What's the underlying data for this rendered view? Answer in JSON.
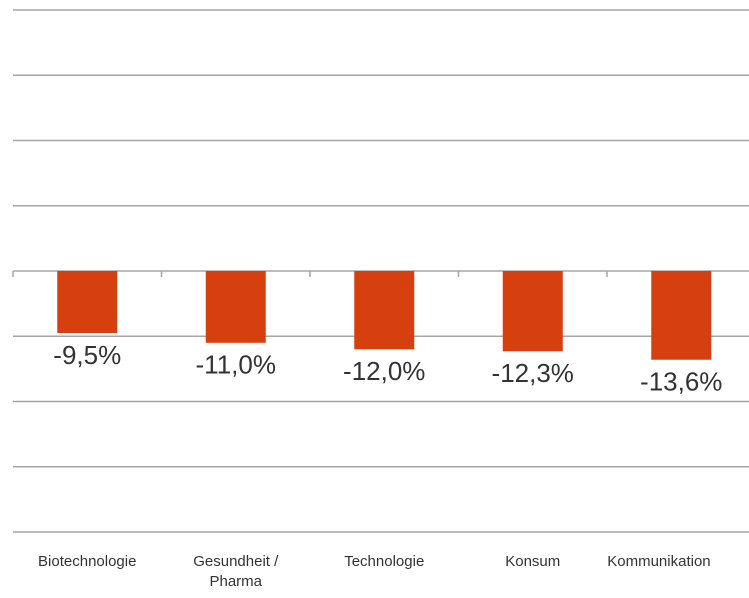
{
  "chart_data": {
    "type": "bar",
    "categories": [
      "Biotechnologie",
      "Gesundheit / Pharma",
      "Technologie",
      "Konsum",
      "Kommunikation"
    ],
    "values": [
      -9.5,
      -11.0,
      -12.0,
      -12.3,
      -13.6
    ],
    "value_labels": [
      "-9,5%",
      "-11,0%",
      "-12,0%",
      "-12,3%",
      "-13,6%"
    ],
    "color": "#d6400e",
    "ylim": [
      -40,
      40
    ],
    "yticks": [
      -40,
      -30,
      -20,
      -10,
      0,
      10,
      20,
      30,
      40
    ],
    "grid": true
  }
}
